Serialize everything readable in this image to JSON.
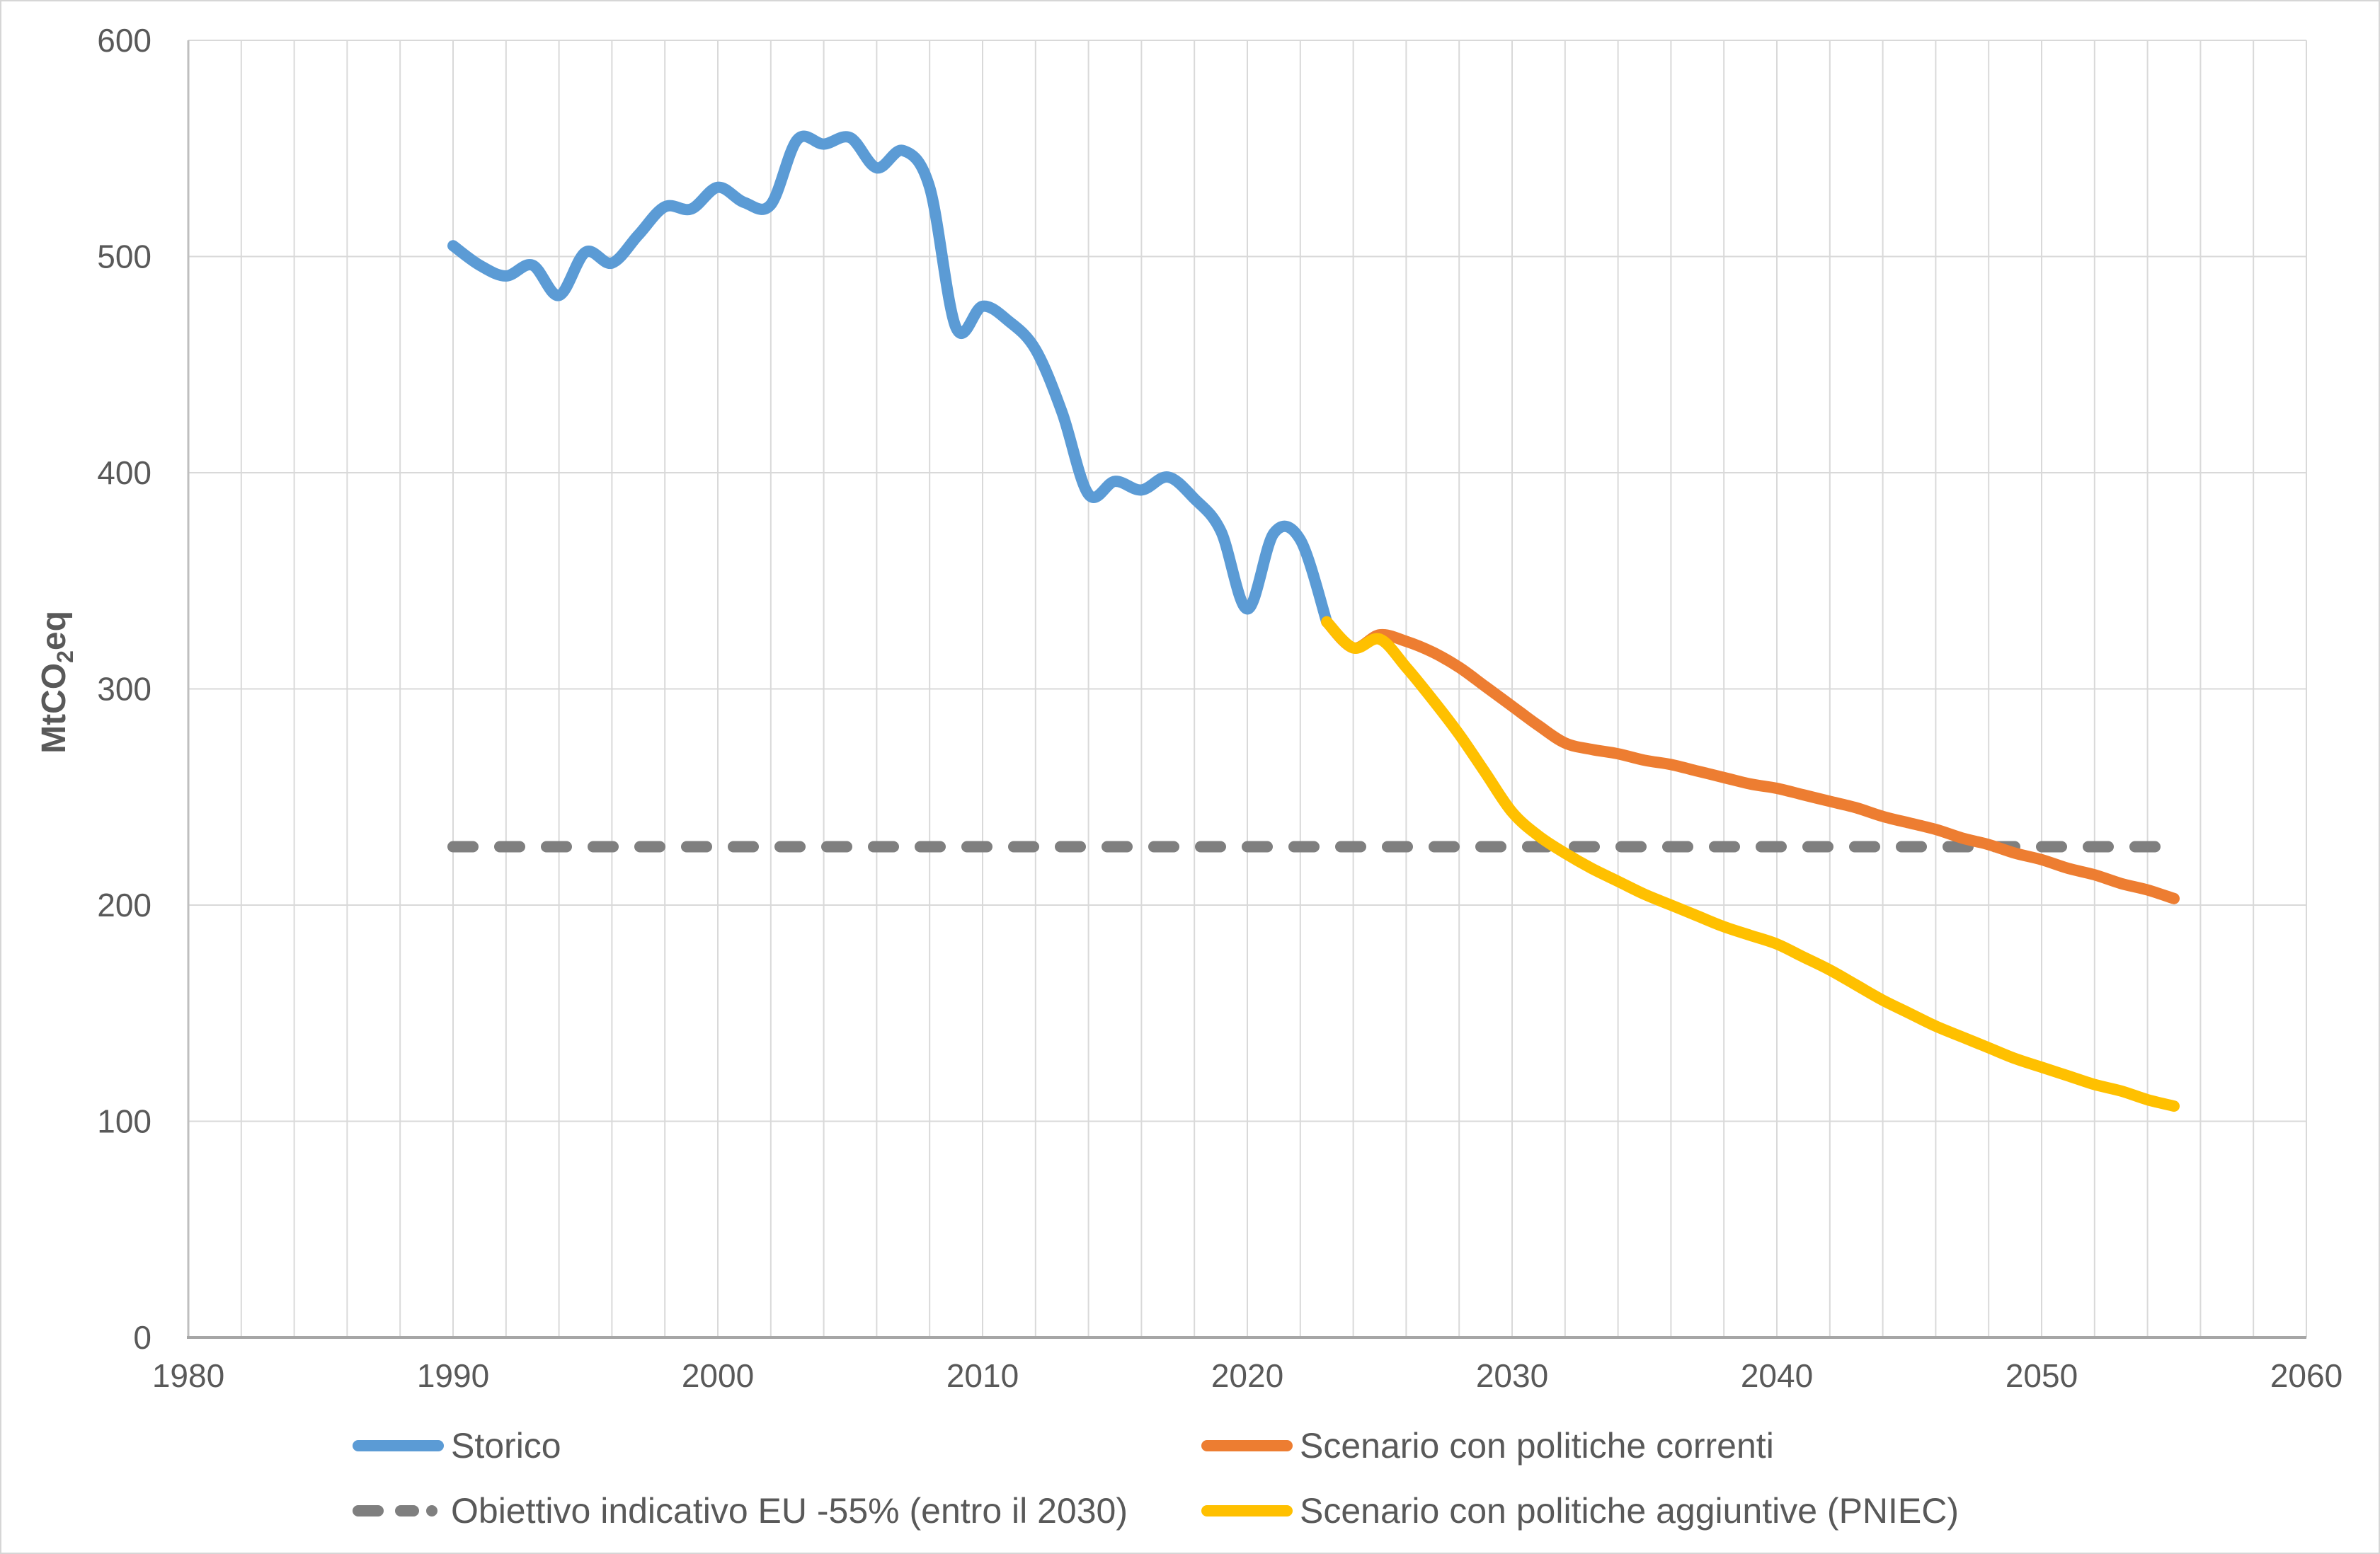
{
  "chart_data": {
    "type": "line",
    "title": "",
    "ylabel": {
      "prefix": "MtCO",
      "sub": "2",
      "suffix": "eq"
    },
    "x_axis": {
      "min": 1980,
      "max": 2060,
      "tick_step": 10,
      "minor_gridline_step": 2,
      "ticks": [
        "1980",
        "1990",
        "2000",
        "2010",
        "2020",
        "2030",
        "2040",
        "2050",
        "2060"
      ]
    },
    "y_axis": {
      "min": 0,
      "max": 600,
      "tick_step": 100,
      "ticks": [
        "0",
        "100",
        "200",
        "300",
        "400",
        "500",
        "600"
      ]
    },
    "grid": "on",
    "legend_position": "bottom",
    "series": [
      {
        "name": "Storico",
        "color": "#5B9BD5",
        "style": "solid",
        "x": [
          1990,
          1991,
          1992,
          1993,
          1994,
          1995,
          1996,
          1997,
          1998,
          1999,
          2000,
          2001,
          2002,
          2003,
          2004,
          2005,
          2006,
          2007,
          2008,
          2009,
          2010,
          2011,
          2012,
          2013,
          2014,
          2015,
          2016,
          2017,
          2018,
          2019,
          2020,
          2021,
          2022,
          2023
        ],
        "values": [
          505,
          496,
          491,
          496,
          482,
          502,
          497,
          510,
          523,
          522,
          532,
          525,
          524,
          554,
          552,
          555,
          541,
          549,
          532,
          467,
          477,
          470,
          457,
          428,
          390,
          396,
          392,
          398,
          388,
          373,
          337,
          372,
          369,
          331
        ]
      },
      {
        "name": "Scenario con politiche correnti",
        "color": "#ED7D31",
        "style": "solid",
        "x": [
          2023,
          2024,
          2025,
          2026,
          2027,
          2028,
          2029,
          2030,
          2031,
          2032,
          2033,
          2034,
          2035,
          2036,
          2037,
          2038,
          2039,
          2040,
          2041,
          2042,
          2043,
          2044,
          2045,
          2046,
          2047,
          2048,
          2049,
          2050,
          2051,
          2052,
          2053,
          2054,
          2055
        ],
        "values": [
          331,
          319,
          325,
          322,
          317,
          310,
          301,
          292,
          283,
          275,
          272,
          270,
          267,
          265,
          262,
          259,
          256,
          254,
          251,
          248,
          245,
          241,
          238,
          235,
          231,
          228,
          224,
          221,
          217,
          214,
          210,
          207,
          203
        ]
      },
      {
        "name": "Obiettivo indicativo EU -55% (entro il 2030)",
        "color": "#7F7F7F",
        "style": "dashed",
        "x": [
          1990,
          2055
        ],
        "values": [
          227,
          227
        ]
      },
      {
        "name": "Scenario con politiche aggiuntive (PNIEC)",
        "color": "#FFC000",
        "style": "solid",
        "x": [
          2023,
          2024,
          2025,
          2026,
          2027,
          2028,
          2029,
          2030,
          2031,
          2032,
          2033,
          2034,
          2035,
          2036,
          2037,
          2038,
          2039,
          2040,
          2041,
          2042,
          2043,
          2044,
          2045,
          2046,
          2047,
          2048,
          2049,
          2050,
          2051,
          2052,
          2053,
          2054,
          2055
        ],
        "values": [
          331,
          319,
          323,
          310,
          295,
          279,
          261,
          243,
          232,
          224,
          217,
          211,
          205,
          200,
          195,
          190,
          186,
          182,
          176,
          170,
          163,
          156,
          150,
          144,
          139,
          134,
          129,
          125,
          121,
          117,
          114,
          110,
          107
        ]
      }
    ]
  }
}
